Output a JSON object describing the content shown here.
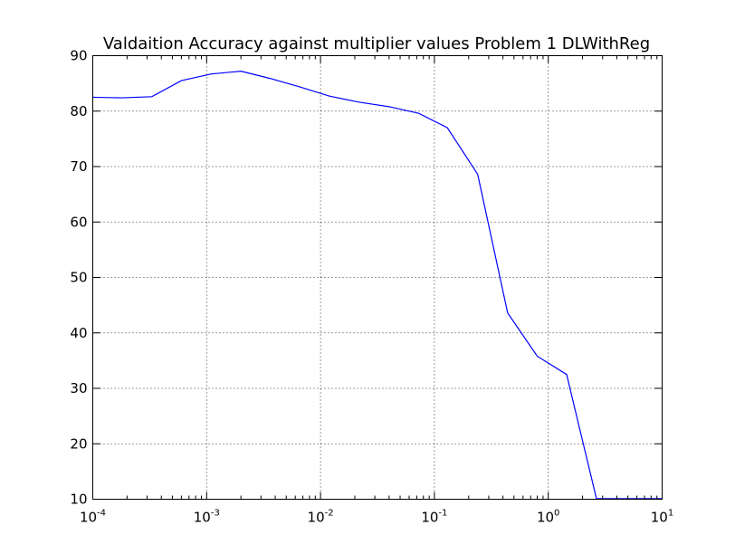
{
  "chart_data": {
    "type": "line",
    "title": "Valdaition Accuracy against multiplier values Problem 1 DLWithReg",
    "xlabel": "",
    "ylabel": "",
    "xscale": "log",
    "xlim": [
      0.0001,
      10
    ],
    "ylim": [
      10,
      90
    ],
    "grid": true,
    "line_color": "#0000ff",
    "x_ticks": [
      {
        "value": 0.0001,
        "base": "10",
        "exp": "-4"
      },
      {
        "value": 0.001,
        "base": "10",
        "exp": "-3"
      },
      {
        "value": 0.01,
        "base": "10",
        "exp": "-2"
      },
      {
        "value": 0.1,
        "base": "10",
        "exp": "-1"
      },
      {
        "value": 1,
        "base": "10",
        "exp": "0"
      },
      {
        "value": 10,
        "base": "10",
        "exp": "1"
      }
    ],
    "y_ticks": [
      "10",
      "20",
      "30",
      "40",
      "50",
      "60",
      "70",
      "80",
      "90"
    ],
    "series": [
      {
        "x": [
          0.0001,
          0.00018,
          0.00033,
          0.0006,
          0.0011,
          0.002,
          0.0036,
          0.0065,
          0.012,
          0.022,
          0.04,
          0.073,
          0.13,
          0.24,
          0.44,
          0.8,
          1.45,
          2.65,
          4.8,
          8.7,
          10
        ],
        "y": [
          82.5,
          82.4,
          82.6,
          85.5,
          86.7,
          87.2,
          85.9,
          84.4,
          82.7,
          81.6,
          80.8,
          79.6,
          77.0,
          68.6,
          43.6,
          35.8,
          32.5,
          10.1,
          10.1,
          10.1,
          10.1
        ]
      }
    ]
  }
}
